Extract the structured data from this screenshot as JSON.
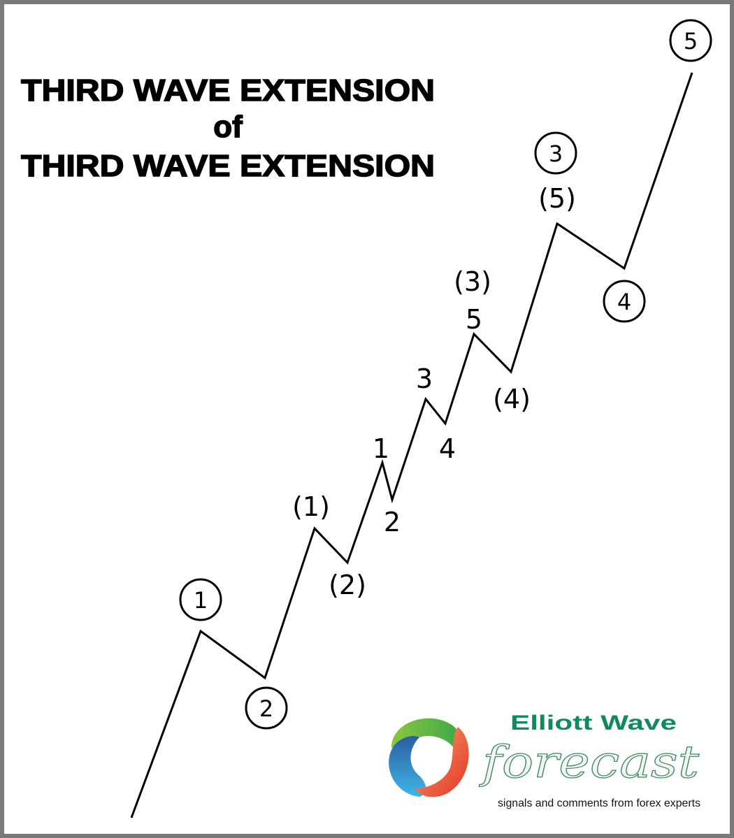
{
  "title": {
    "line1": "THIRD WAVE EXTENSION",
    "line2": "of",
    "line3": "THIRD WAVE EXTENSION"
  },
  "labels": {
    "c1": "1",
    "c2": "2",
    "c3": "3",
    "c4": "4",
    "c5": "5",
    "p1": "(1)",
    "p2": "(2)",
    "p3": "(3)",
    "p4": "(4)",
    "p5": "(5)",
    "m1": "1",
    "m2": "2",
    "m3": "3",
    "m4": "4",
    "m5": "5"
  },
  "logo": {
    "brand": "Elliott Wave",
    "word": "forecast",
    "tagline": "signals and comments from forex experts",
    "colors": {
      "green": "#5cb646",
      "blue": "#2a7fc2",
      "red": "#e8452a",
      "text": "#0f8a5a"
    }
  }
}
